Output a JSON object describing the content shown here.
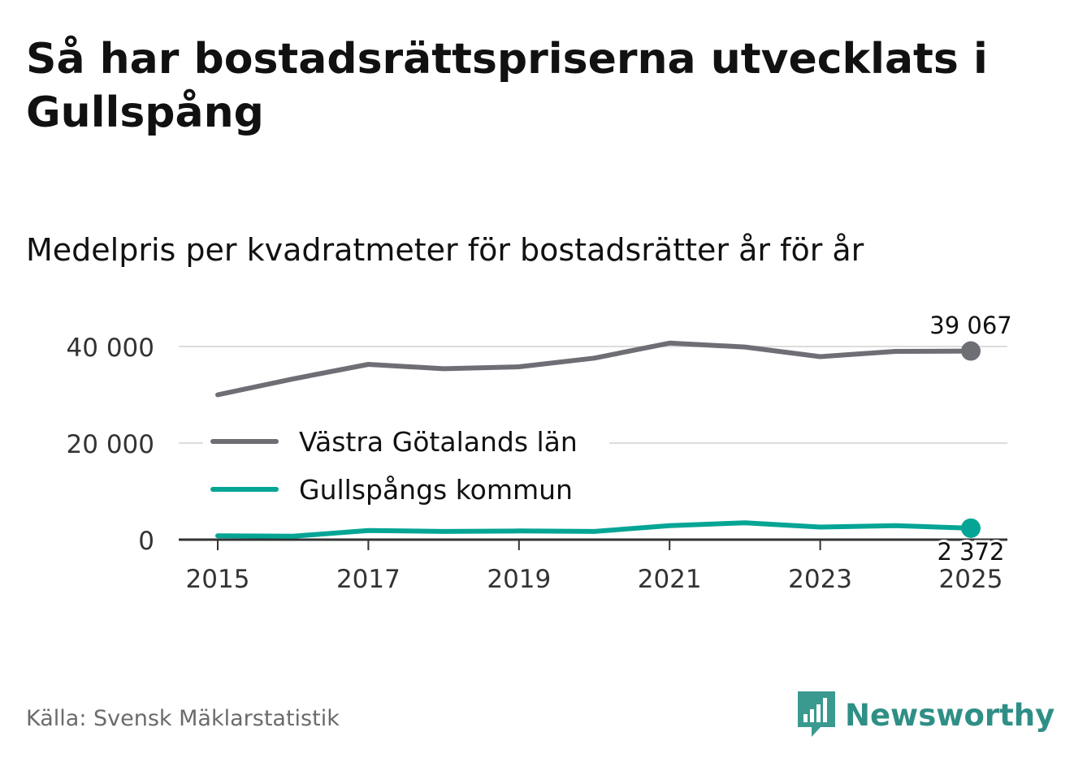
{
  "title": "Så har bostadsrättspriserna utvecklats i Gullspång",
  "subtitle": "Medelpris per kvadratmeter för bostadsrätter år för år",
  "source": "Källa: Svensk Mäklarstatistik",
  "brand": "Newsworthy",
  "colors": {
    "region": "#6e6e75",
    "municipality": "#05a595",
    "grid": "#dddddd",
    "axis": "#333333",
    "brand": "#2f8f86"
  },
  "chart_data": {
    "type": "line",
    "x": [
      2015,
      2016,
      2017,
      2018,
      2019,
      2020,
      2021,
      2022,
      2023,
      2024,
      2025
    ],
    "series": [
      {
        "name": "Västra Götalands län",
        "values": [
          30000,
          33300,
          36300,
          35400,
          35800,
          37600,
          40700,
          39900,
          37900,
          39000,
          39067
        ]
      },
      {
        "name": "Gullspångs kommun",
        "values": [
          800,
          700,
          1900,
          1700,
          1800,
          1700,
          2900,
          3500,
          2600,
          2900,
          2372
        ]
      }
    ],
    "ylim": [
      0,
      40000
    ],
    "yticks": [
      0,
      20000,
      40000
    ],
    "ytick_labels": [
      "0",
      "20 000",
      "40 000"
    ],
    "xticks": [
      2015,
      2017,
      2019,
      2021,
      2023,
      2025
    ],
    "xtick_labels": [
      "2015",
      "2017",
      "2019",
      "2021",
      "2023",
      "2025"
    ],
    "end_labels": [
      "39 067",
      "2 372"
    ],
    "legend_position": "center-left"
  }
}
